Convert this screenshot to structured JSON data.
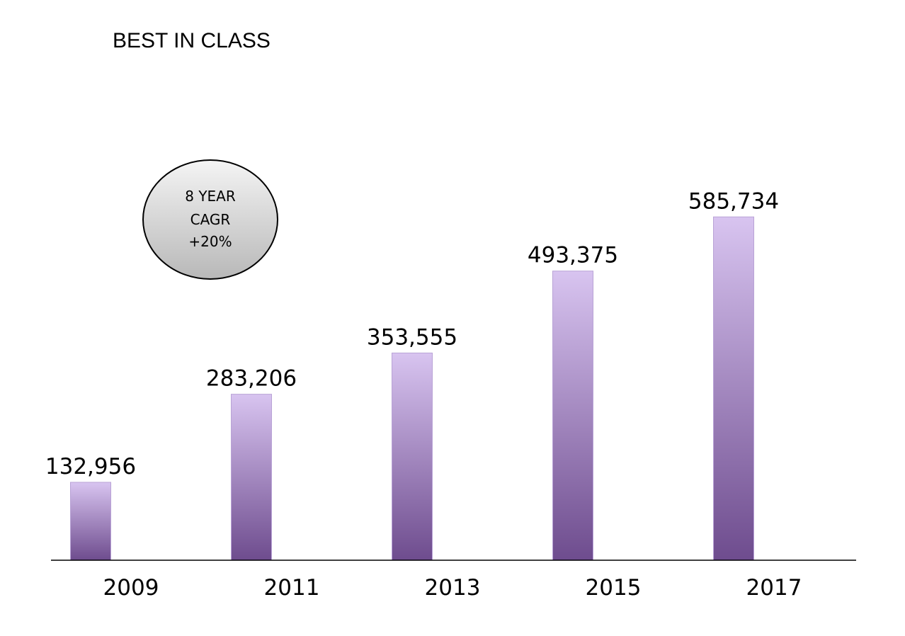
{
  "chart_data": {
    "type": "bar",
    "title": "BEST IN CLASS",
    "categories": [
      "2009",
      "2011",
      "2013",
      "2015",
      "2017"
    ],
    "values": [
      132956,
      283206,
      353555,
      493375,
      585734
    ],
    "value_labels": [
      "132,956",
      "283,206",
      "353,555",
      "493,375",
      "585,734"
    ],
    "xlabel": "",
    "ylabel": "",
    "ylim": [
      0,
      725000
    ],
    "grid": false,
    "legend": "none",
    "annotations": [
      {
        "lines": [
          "8 YEAR",
          "CAGR",
          "+20%"
        ]
      }
    ],
    "colors": {
      "bar_top": "#d8c4f0",
      "bar_bottom": "#6e4c8e",
      "bar_stroke": "#b9a3d6",
      "axis": "#000000",
      "badge_light": "#f4f4f4",
      "badge_dark": "#b8b8b8"
    }
  }
}
